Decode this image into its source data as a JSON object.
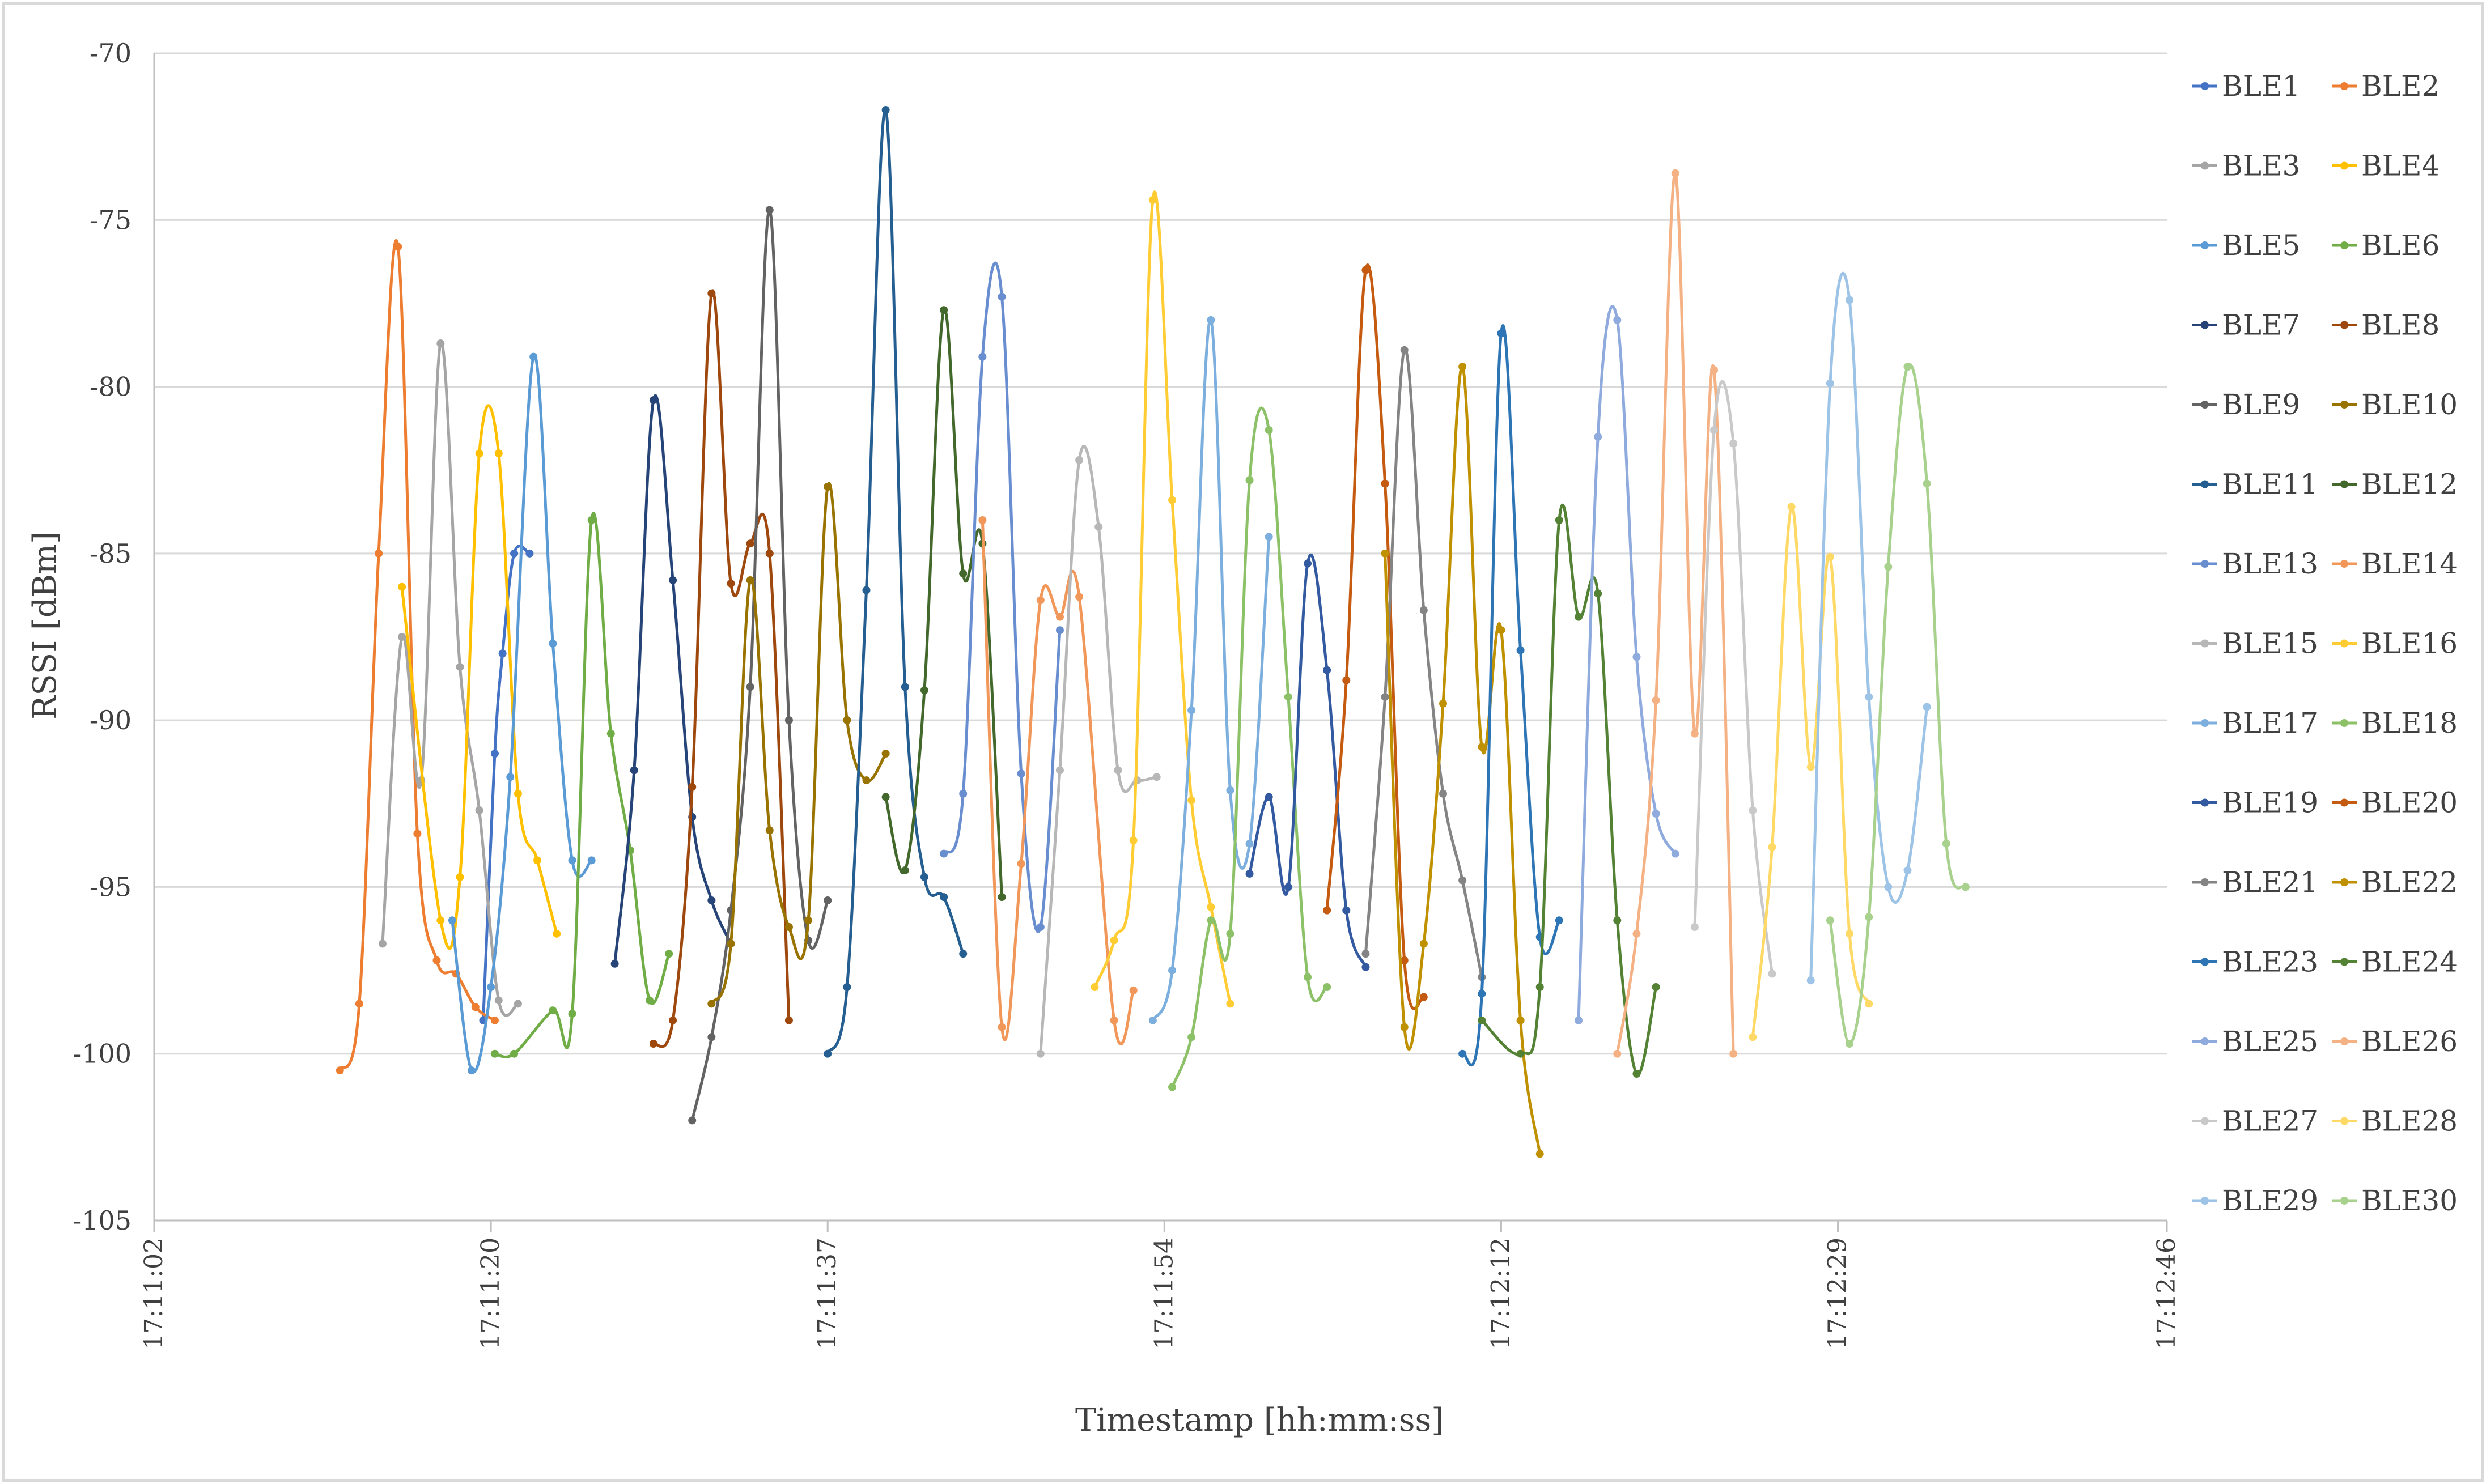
{
  "chart_data": {
    "type": "line",
    "title": "",
    "xlabel": "Timestamp [hh:mm:ss]",
    "ylabel": "RSSI [dBm]",
    "x_unit": "seconds since 17:11:02",
    "xlim": [
      0,
      104
    ],
    "ylim": [
      -105,
      -70
    ],
    "x_ticks": [
      0,
      17.4,
      34.8,
      52.2,
      69.6,
      87,
      104
    ],
    "x_tick_labels": [
      "17:11:02",
      "17:11:20",
      "17:11:37",
      "17:11:54",
      "17:12:12",
      "17:12:29",
      "17:12:46"
    ],
    "y_ticks": [
      -70,
      -75,
      -80,
      -85,
      -90,
      -95,
      -100,
      -105
    ],
    "y_tick_labels": [
      "-70",
      "-75",
      "-80",
      "-85",
      "-90",
      "-95",
      "-100",
      "-105"
    ],
    "grid": "horizontal",
    "legend_position": "right",
    "series": [
      {
        "name": "BLE1",
        "color": "#4472C4",
        "x": [
          17.0,
          17.6,
          18.0,
          18.6,
          19.4
        ],
        "y": [
          -99,
          -91,
          -88,
          -85,
          -85
        ]
      },
      {
        "name": "BLE2",
        "color": "#ED7D31",
        "x": [
          9.6,
          10.6,
          11.6,
          12.6,
          13.6,
          14.6,
          15.6,
          16.6,
          17.6
        ],
        "y": [
          -100.5,
          -98.5,
          -85,
          -75.8,
          -93.4,
          -97.2,
          -97.6,
          -98.6,
          -99
        ]
      },
      {
        "name": "BLE3",
        "color": "#A5A5A5",
        "x": [
          11.8,
          12.8,
          13.8,
          14.8,
          15.8,
          16.8,
          17.8,
          18.8
        ],
        "y": [
          -96.7,
          -87.5,
          -91.8,
          -78.7,
          -88.4,
          -92.7,
          -98.4,
          -98.5
        ]
      },
      {
        "name": "BLE4",
        "color": "#FFC000",
        "x": [
          12.8,
          14.8,
          15.8,
          16.8,
          17.8,
          18.8,
          19.8,
          20.8
        ],
        "y": [
          -86,
          -96,
          -94.7,
          -82,
          -82,
          -92.2,
          -94.2,
          -96.4
        ]
      },
      {
        "name": "BLE5",
        "color": "#5B9BD5",
        "x": [
          15.4,
          16.4,
          17.4,
          18.4,
          19.6,
          20.6,
          21.6,
          22.6
        ],
        "y": [
          -96,
          -100.5,
          -98,
          -91.7,
          -79.1,
          -87.7,
          -94.2,
          -94.2
        ]
      },
      {
        "name": "BLE6",
        "color": "#70AD47",
        "x": [
          17.6,
          18.6,
          20.6,
          21.6,
          22.6,
          23.6,
          24.6,
          25.6,
          26.6
        ],
        "y": [
          -100,
          -100,
          -98.7,
          -98.8,
          -84,
          -90.4,
          -93.9,
          -98.4,
          -97
        ]
      },
      {
        "name": "BLE7",
        "color": "#264478",
        "x": [
          23.8,
          24.8,
          25.8,
          26.8,
          27.8,
          28.8,
          29.8
        ],
        "y": [
          -97.3,
          -91.5,
          -80.4,
          -85.8,
          -92.9,
          -95.4,
          -96.7
        ]
      },
      {
        "name": "BLE8",
        "color": "#9E480E",
        "x": [
          25.8,
          26.8,
          27.8,
          28.8,
          29.8,
          30.8,
          31.8,
          32.8
        ],
        "y": [
          -99.7,
          -99,
          -92,
          -77.2,
          -85.9,
          -84.7,
          -85,
          -99
        ]
      },
      {
        "name": "BLE9",
        "color": "#636363",
        "x": [
          27.8,
          28.8,
          29.8,
          30.8,
          31.8,
          32.8,
          33.8,
          34.8
        ],
        "y": [
          -102,
          -99.5,
          -95.7,
          -89,
          -74.7,
          -90,
          -96.6,
          -95.4
        ]
      },
      {
        "name": "BLE10",
        "color": "#997300",
        "x": [
          28.8,
          29.8,
          30.8,
          31.8,
          32.8,
          33.8,
          34.8,
          35.8,
          36.8,
          37.8
        ],
        "y": [
          -98.5,
          -96.7,
          -85.8,
          -93.3,
          -96.2,
          -96,
          -83,
          -90,
          -91.8,
          -91
        ]
      },
      {
        "name": "BLE11",
        "color": "#255E91",
        "x": [
          34.8,
          35.8,
          36.8,
          37.8,
          38.8,
          39.8,
          40.8,
          41.8
        ],
        "y": [
          -100,
          -98,
          -86.1,
          -71.7,
          -89,
          -94.7,
          -95.3,
          -97
        ]
      },
      {
        "name": "BLE12",
        "color": "#43682B",
        "x": [
          37.8,
          38.8,
          39.8,
          40.8,
          41.8,
          42.8,
          43.8
        ],
        "y": [
          -92.3,
          -94.5,
          -89.1,
          -77.7,
          -85.6,
          -84.7,
          -95.3
        ]
      },
      {
        "name": "BLE13",
        "color": "#698ED0",
        "x": [
          40.8,
          41.8,
          42.8,
          43.8,
          44.8,
          45.8,
          46.8
        ],
        "y": [
          -94,
          -92.2,
          -79.1,
          -77.3,
          -91.6,
          -96.2,
          -87.3
        ]
      },
      {
        "name": "BLE14",
        "color": "#F1975A",
        "x": [
          42.8,
          43.8,
          44.8,
          45.8,
          46.8,
          47.8,
          49.6,
          50.6
        ],
        "y": [
          -84,
          -99.2,
          -94.3,
          -86.4,
          -86.9,
          -86.3,
          -99,
          -98.1
        ]
      },
      {
        "name": "BLE15",
        "color": "#B7B7B7",
        "x": [
          45.8,
          46.8,
          47.8,
          48.8,
          49.8,
          50.8,
          51.8
        ],
        "y": [
          -100,
          -91.5,
          -82.2,
          -84.2,
          -91.5,
          -91.8,
          -91.7
        ]
      },
      {
        "name": "BLE16",
        "color": "#FFCD33",
        "x": [
          48.6,
          49.6,
          50.6,
          51.6,
          52.6,
          53.6,
          54.6,
          55.6
        ],
        "y": [
          -98,
          -96.6,
          -93.6,
          -74.4,
          -83.4,
          -92.4,
          -95.6,
          -98.5
        ]
      },
      {
        "name": "BLE17",
        "color": "#7CAFDD",
        "x": [
          51.6,
          52.6,
          53.6,
          54.6,
          55.6,
          56.6,
          57.6
        ],
        "y": [
          -99,
          -97.5,
          -89.7,
          -78,
          -92.1,
          -93.7,
          -84.5
        ]
      },
      {
        "name": "BLE18",
        "color": "#8CC168",
        "x": [
          52.6,
          53.6,
          54.6,
          55.6,
          56.6,
          57.6,
          58.6,
          59.6,
          60.6
        ],
        "y": [
          -101,
          -99.5,
          -96,
          -96.4,
          -82.8,
          -81.3,
          -89.3,
          -97.7,
          -98
        ]
      },
      {
        "name": "BLE19",
        "color": "#335AA1",
        "x": [
          56.6,
          57.6,
          58.6,
          59.6,
          60.6,
          61.6,
          62.6
        ],
        "y": [
          -94.6,
          -92.3,
          -95,
          -85.3,
          -88.5,
          -95.7,
          -97.4
        ]
      },
      {
        "name": "BLE20",
        "color": "#C55A11",
        "x": [
          60.6,
          61.6,
          62.6,
          63.6,
          64.6,
          65.6
        ],
        "y": [
          -95.7,
          -88.8,
          -76.5,
          -82.9,
          -97.2,
          -98.3
        ]
      },
      {
        "name": "BLE21",
        "color": "#848484",
        "x": [
          62.6,
          63.6,
          64.6,
          65.6,
          66.6,
          67.6,
          68.6
        ],
        "y": [
          -97,
          -89.3,
          -78.9,
          -86.7,
          -92.2,
          -94.8,
          -97.7
        ]
      },
      {
        "name": "BLE22",
        "color": "#BF9000",
        "x": [
          63.6,
          64.6,
          65.6,
          66.6,
          67.6,
          68.6,
          69.6,
          70.6,
          71.6
        ],
        "y": [
          -85,
          -99.2,
          -96.7,
          -89.5,
          -79.4,
          -90.8,
          -87.3,
          -99,
          -103
        ]
      },
      {
        "name": "BLE23",
        "color": "#2E75B6",
        "x": [
          67.6,
          68.6,
          69.6,
          70.6,
          71.6,
          72.6
        ],
        "y": [
          -100,
          -98.2,
          -78.4,
          -87.9,
          -96.5,
          -96
        ]
      },
      {
        "name": "BLE24",
        "color": "#548235",
        "x": [
          68.6,
          70.6,
          71.6,
          72.6,
          73.6,
          74.6,
          75.6,
          76.6,
          77.6
        ],
        "y": [
          -99,
          -100,
          -98,
          -84,
          -86.9,
          -86.2,
          -96,
          -100.6,
          -98
        ]
      },
      {
        "name": "BLE25",
        "color": "#8FAADC",
        "x": [
          73.6,
          74.6,
          75.6,
          76.6,
          77.6,
          78.6
        ],
        "y": [
          -99,
          -81.5,
          -78,
          -88.1,
          -92.8,
          -94
        ]
      },
      {
        "name": "BLE26",
        "color": "#F4B183",
        "x": [
          75.6,
          76.6,
          77.6,
          78.6,
          79.6,
          80.6,
          81.6
        ],
        "y": [
          -100,
          -96.4,
          -89.4,
          -73.6,
          -90.4,
          -79.5,
          -100
        ]
      },
      {
        "name": "BLE27",
        "color": "#C9C9C9",
        "x": [
          79.6,
          80.6,
          81.6,
          82.6,
          83.6
        ],
        "y": [
          -96.2,
          -81.3,
          -81.7,
          -92.7,
          -97.6
        ]
      },
      {
        "name": "BLE28",
        "color": "#FFD966",
        "x": [
          82.6,
          83.6,
          84.6,
          85.6,
          86.6,
          87.6,
          88.6
        ],
        "y": [
          -99.5,
          -93.8,
          -83.6,
          -91.4,
          -85.1,
          -96.4,
          -98.5
        ]
      },
      {
        "name": "BLE29",
        "color": "#9DC3E6",
        "x": [
          85.6,
          86.6,
          87.6,
          88.6,
          89.6,
          90.6,
          91.6
        ],
        "y": [
          -97.8,
          -79.9,
          -77.4,
          -89.3,
          -95,
          -94.5,
          -89.6
        ]
      },
      {
        "name": "BLE30",
        "color": "#A9D18E",
        "x": [
          86.6,
          87.6,
          88.6,
          89.6,
          90.6,
          91.6,
          92.6,
          93.6
        ],
        "y": [
          -96,
          -99.7,
          -95.9,
          -85.4,
          -79.4,
          -82.9,
          -93.7,
          -95
        ]
      }
    ]
  }
}
